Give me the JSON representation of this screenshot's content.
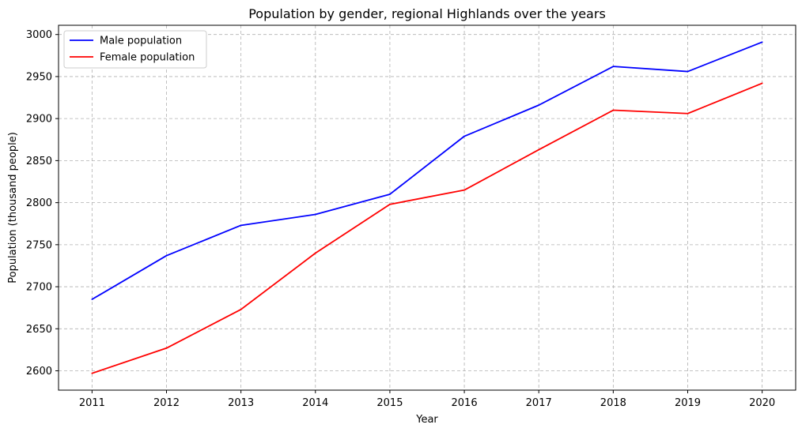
{
  "chart_data": {
    "type": "line",
    "title": "Population by gender, regional Highlands over the years",
    "xlabel": "Year",
    "ylabel": "Population (thousand people)",
    "x": [
      "2011",
      "2012",
      "2013",
      "2014",
      "2015",
      "2016",
      "2017",
      "2018",
      "2019",
      "2020"
    ],
    "xlim": [
      2010.55,
      2020.45
    ],
    "ylim": [
      2577,
      3011
    ],
    "yticks": [
      "2600",
      "2650",
      "2700",
      "2750",
      "2800",
      "2850",
      "2900",
      "2950",
      "3000"
    ],
    "grid": true,
    "legend_position": "top-left",
    "series": [
      {
        "name": "Male population",
        "color": "#0000ff",
        "values": [
          2685,
          2737,
          2773,
          2786,
          2810,
          2879,
          2916,
          2962,
          2956,
          2991
        ]
      },
      {
        "name": "Female population",
        "color": "#ff0000",
        "values": [
          2597,
          2627,
          2673,
          2740,
          2798,
          2815,
          2863,
          2910,
          2906,
          2942
        ]
      }
    ]
  }
}
